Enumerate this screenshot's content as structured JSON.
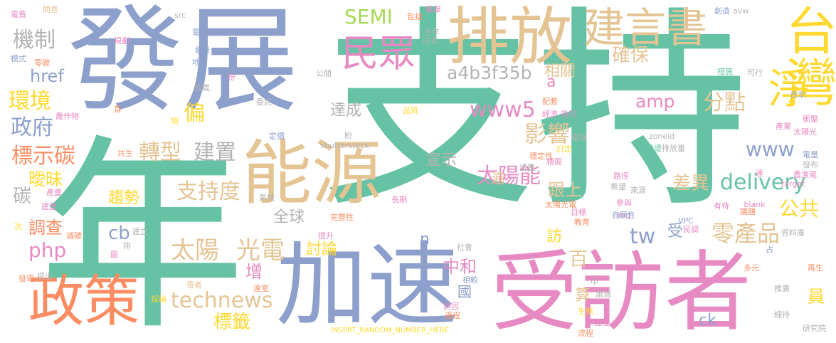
{
  "palette": {
    "teal": "#66c2a5",
    "orange": "#fc8d62",
    "blue": "#8da0cb",
    "pink": "#e78ac3",
    "lime": "#a6d854",
    "yellow": "#ffd92f",
    "tan": "#e5c494",
    "gray": "#b3b3b3"
  },
  "words": [
    {
      "text": "支持",
      "color": "teal"
    },
    {
      "text": "年",
      "color": "teal"
    },
    {
      "text": "發展",
      "color": "blue"
    },
    {
      "text": "加速",
      "color": "blue"
    },
    {
      "text": "受訪者",
      "color": "pink"
    },
    {
      "text": "能源",
      "color": "tan"
    },
    {
      "text": "排放",
      "color": "tan"
    },
    {
      "text": "建言書",
      "color": "tan"
    },
    {
      "text": "台灣",
      "color": "yellow"
    },
    {
      "text": "淨",
      "color": "yellow"
    },
    {
      "text": "政策",
      "color": "orange"
    },
    {
      "text": "民眾",
      "color": "pink"
    },
    {
      "text": "SEMI",
      "color": "lime"
    },
    {
      "text": "機制",
      "color": "gray"
    },
    {
      "text": "a4b3f35b",
      "color": "gray"
    },
    {
      "text": "確保",
      "color": "tan"
    },
    {
      "text": "相關",
      "color": "tan"
    },
    {
      "text": "環境",
      "color": "yellow"
    },
    {
      "text": "href",
      "color": "blue"
    },
    {
      "text": "政府",
      "color": "blue"
    },
    {
      "text": "偏",
      "color": "yellow"
    },
    {
      "text": "達成",
      "color": "gray"
    },
    {
      "text": "www5",
      "color": "pink"
    },
    {
      "text": "amp",
      "color": "pink"
    },
    {
      "text": "分點",
      "color": "tan"
    },
    {
      "text": "影響",
      "color": "tan"
    },
    {
      "text": "標示碳",
      "color": "orange"
    },
    {
      "text": "轉型",
      "color": "tan"
    },
    {
      "text": "建置",
      "color": "gray"
    },
    {
      "text": "www",
      "color": "blue"
    },
    {
      "text": "宣示",
      "color": "gray"
    },
    {
      "text": "曖昧",
      "color": "yellow"
    },
    {
      "text": "delivery",
      "color": "teal"
    },
    {
      "text": "支持度",
      "color": "tan"
    },
    {
      "text": "太陽能",
      "color": "pink"
    },
    {
      "text": "差異",
      "color": "tan"
    },
    {
      "text": "公共",
      "color": "yellow"
    },
    {
      "text": "碳",
      "color": "gray"
    },
    {
      "text": "趨勢",
      "color": "yellow"
    },
    {
      "text": "跟上",
      "color": "tan"
    },
    {
      "text": "全球",
      "color": "gray"
    },
    {
      "text": "調查",
      "color": "orange"
    },
    {
      "text": "太陽",
      "color": "tan"
    },
    {
      "text": "光電",
      "color": "tan"
    },
    {
      "text": "tw",
      "color": "blue"
    },
    {
      "text": "零產品",
      "color": "tan"
    },
    {
      "text": "php",
      "color": "pink"
    },
    {
      "text": "cb",
      "color": "blue"
    },
    {
      "text": "n",
      "color": "blue"
    },
    {
      "text": "討論",
      "color": "yellow"
    },
    {
      "text": "中和",
      "color": "pink"
    },
    {
      "text": "增",
      "color": "pink"
    },
    {
      "text": "technews",
      "color": "tan"
    },
    {
      "text": "標籤",
      "color": "yellow"
    },
    {
      "text": "國",
      "color": "blue"
    },
    {
      "text": "算",
      "color": "tan"
    },
    {
      "text": "ck",
      "color": "blue"
    },
    {
      "text": "員",
      "color": "yellow"
    },
    {
      "text": "百",
      "color": "tan"
    },
    {
      "text": "訪",
      "color": "yellow"
    },
    {
      "text": "受",
      "color": "blue"
    },
    {
      "text": "a",
      "color": "pink"
    },
    {
      "text": "逾",
      "color": "tan"
    },
    {
      "text": "電費",
      "color": "pink"
    },
    {
      "text": "問卷",
      "color": "tan"
    },
    {
      "text": "包括",
      "color": "orange"
    },
    {
      "text": "帳單",
      "color": "pink"
    },
    {
      "text": "src",
      "color": "gray"
    },
    {
      "text": "電力",
      "color": "blue"
    },
    {
      "text": "創造",
      "color": "blue"
    },
    {
      "text": "avw",
      "color": "gray"
    },
    {
      "text": "規劃",
      "color": "pink"
    },
    {
      "text": "去年",
      "color": "gray"
    },
    {
      "text": "成長",
      "color": "gray"
    },
    {
      "text": "模式",
      "color": "blue"
    },
    {
      "text": "零碳",
      "color": "orange"
    },
    {
      "text": "網址",
      "color": "blue"
    },
    {
      "text": "地方",
      "color": "blue"
    },
    {
      "text": "公開",
      "color": "gray"
    },
    {
      "text": "份",
      "color": "pink"
    },
    {
      "text": "放寬",
      "color": "gray"
    },
    {
      "text": "委託",
      "color": "gray"
    },
    {
      "text": "措施",
      "color": "teal"
    },
    {
      "text": "可行",
      "color": "gray"
    },
    {
      "text": "費率",
      "color": "gray"
    },
    {
      "text": "配套",
      "color": "orange"
    },
    {
      "text": "經濟",
      "color": "pink"
    },
    {
      "text": "吸引",
      "color": "pink"
    },
    {
      "text": "衝擊",
      "color": "pink"
    },
    {
      "text": "農作物",
      "color": "pink"
    },
    {
      "text": "首",
      "color": "orange"
    },
    {
      "text": "品質",
      "color": "yellow"
    },
    {
      "text": "產業",
      "color": "pink"
    },
    {
      "text": "太陽光",
      "color": "pink"
    },
    {
      "text": "定價",
      "color": "blue"
    },
    {
      "text": "項",
      "color": "yellow"
    },
    {
      "text": "盼",
      "color": "gray"
    },
    {
      "text": "電廠",
      "color": "gray"
    },
    {
      "text": "zoneid",
      "color": "gray"
    },
    {
      "text": "訂定",
      "color": "yellow"
    },
    {
      "text": "驗證",
      "color": "teal"
    },
    {
      "text": "排放量",
      "color": "gray"
    },
    {
      "text": "shutterstock",
      "color": "gray"
    },
    {
      "text": "穩定性",
      "color": "orange"
    },
    {
      "text": "共生",
      "color": "orange"
    },
    {
      "text": "電量",
      "color": "blue"
    },
    {
      "text": "發布",
      "color": "gray"
    },
    {
      "text": "設置",
      "color": "gray"
    },
    {
      "text": "精簡",
      "color": "pink"
    },
    {
      "text": "路徑",
      "color": "pink"
    },
    {
      "text": "達",
      "color": "pink"
    },
    {
      "text": "農漁電",
      "color": "pink"
    },
    {
      "text": "產量",
      "color": "pink"
    },
    {
      "text": "希望",
      "color": "gray"
    },
    {
      "text": "來源",
      "color": "gray"
    },
    {
      "text": "target",
      "color": "pink"
    },
    {
      "text": "_blank",
      "color": "pink"
    },
    {
      "text": "太陽光電",
      "color": "orange"
    },
    {
      "text": "參與",
      "color": "pink"
    },
    {
      "text": "建置",
      "color": "pink"
    },
    {
      "text": "氣候",
      "color": "gray"
    },
    {
      "text": "長期",
      "color": "pink"
    },
    {
      "text": "完整性",
      "color": "orange"
    },
    {
      "text": "目標",
      "color": "pink"
    },
    {
      "text": "img",
      "color": "pink"
    },
    {
      "text": "自願性",
      "color": "blue"
    },
    {
      "text": "有待",
      "color": "pink"
    },
    {
      "text": "議題",
      "color": "orange"
    },
    {
      "text": "次",
      "color": "yellow"
    },
    {
      "text": "減碳",
      "color": "orange"
    },
    {
      "text": "建立",
      "color": "gray"
    },
    {
      "text": "提升",
      "color": "pink"
    },
    {
      "text": "教育",
      "color": "orange"
    },
    {
      "text": "VPC",
      "color": "blue"
    },
    {
      "text": "民調",
      "color": "pink"
    },
    {
      "text": "資料庫",
      "color": "gray"
    },
    {
      "text": "排",
      "color": "gray"
    },
    {
      "text": "圖",
      "color": "pink"
    },
    {
      "text": "社會",
      "color": "gray"
    },
    {
      "text": "占",
      "color": "blue"
    },
    {
      "text": "發電",
      "color": "orange"
    },
    {
      "text": "提出",
      "color": "gray"
    },
    {
      "text": "中",
      "color": "gray"
    },
    {
      "text": "多元",
      "color": "orange"
    },
    {
      "text": "再生",
      "color": "orange"
    },
    {
      "text": "相較",
      "color": "blue"
    },
    {
      "text": "電者",
      "color": "tan"
    },
    {
      "text": "遠室",
      "color": "orange"
    },
    {
      "text": "推廣",
      "color": "gray"
    },
    {
      "text": "採納",
      "color": "yellow"
    },
    {
      "text": "誘因",
      "color": "pink"
    },
    {
      "text": "過程",
      "color": "orange"
    },
    {
      "text": "生態",
      "color": "yellow"
    },
    {
      "text": "遲址",
      "color": "pink"
    },
    {
      "text": "蕭瑞",
      "color": "gray"
    },
    {
      "text": "研究院",
      "color": "gray"
    },
    {
      "text": "INSERT_RANDOM_NUMBER_HERE",
      "color": "yellow"
    },
    {
      "text": "流程",
      "color": "orange"
    },
    {
      "text": "細待",
      "color": "gray"
    }
  ]
}
